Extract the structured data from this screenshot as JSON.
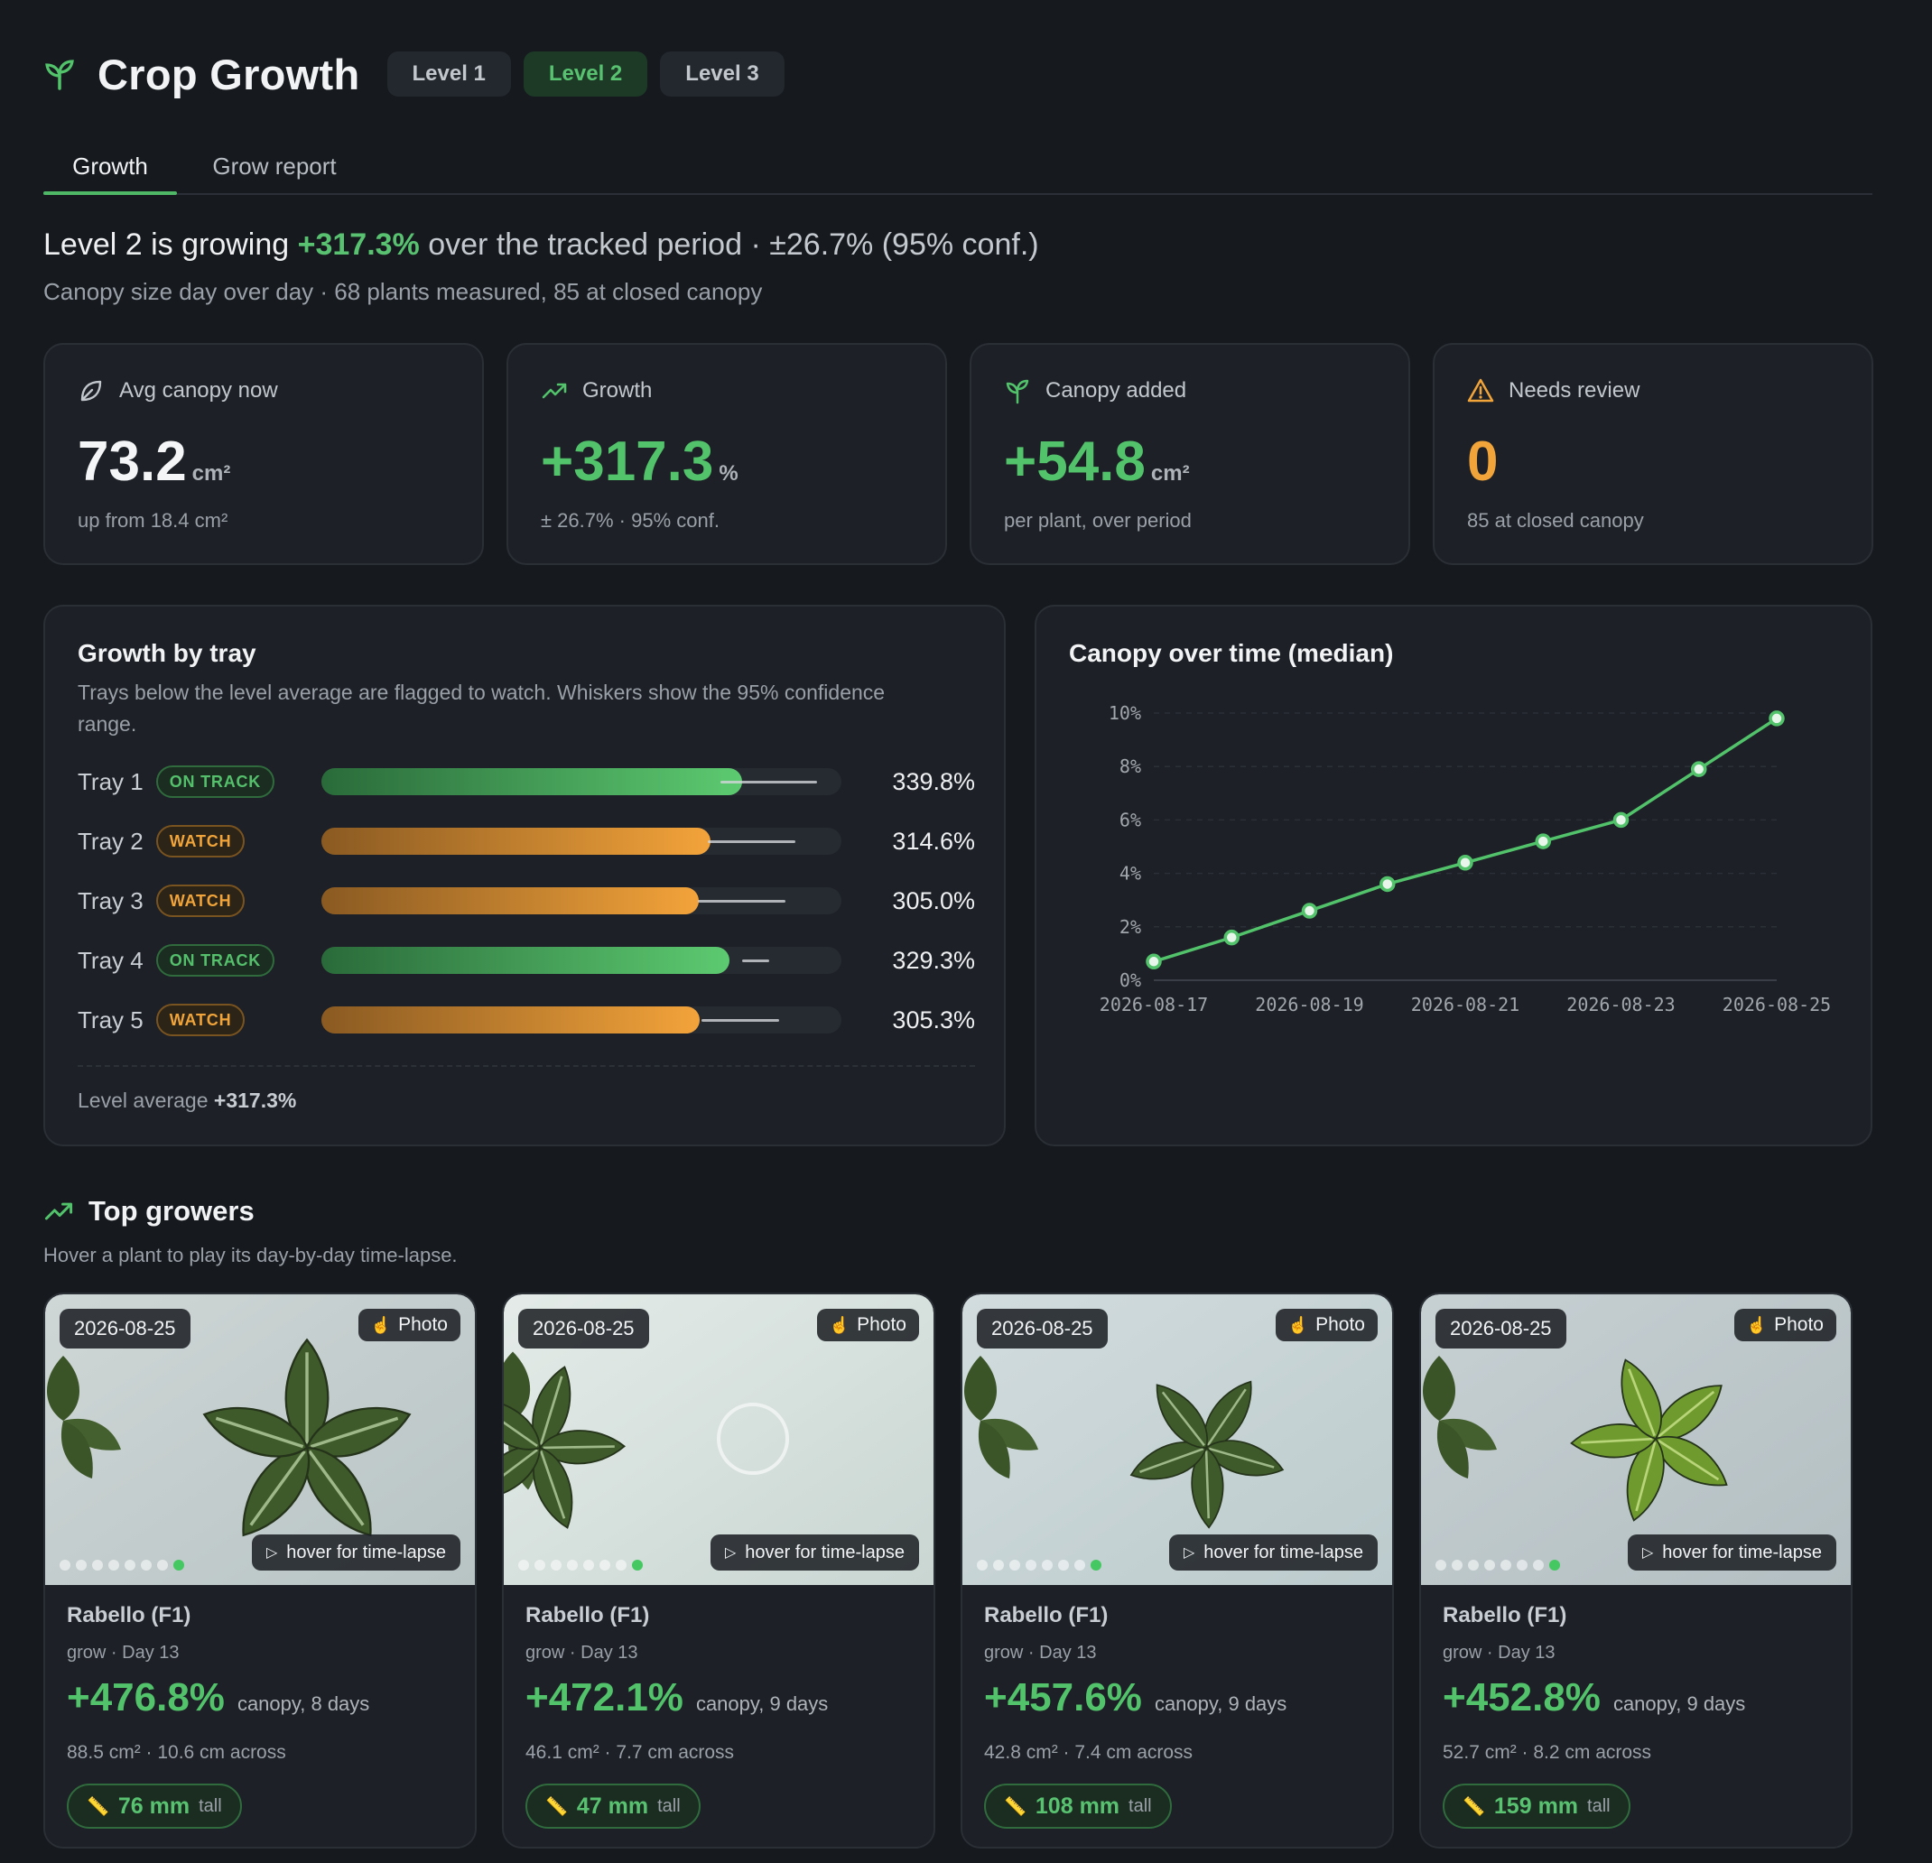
{
  "app": {
    "title": "Crop Growth",
    "levels": [
      "Level 1",
      "Level 2",
      "Level 3"
    ],
    "active_level": "Level 2"
  },
  "tabs": [
    "Growth",
    "Grow report"
  ],
  "active_tab": "Growth",
  "summary": {
    "prefix": "Level 2 is growing",
    "growth": "+317.3%",
    "middle": "over the tracked period",
    "conf": "· ±26.7% (95% conf.)",
    "subtitle": "Canopy size day over day · 68 plants measured, 85 at closed canopy"
  },
  "stats": [
    {
      "icon": "leaf-icon",
      "label": "Avg canopy now",
      "value": "73.2",
      "unit": "cm²",
      "foot": "up from 18.4 cm²",
      "color": "#f3f5f7"
    },
    {
      "icon": "trending-up-icon",
      "label": "Growth",
      "value": "+317.3",
      "unit": "%",
      "foot": "± 26.7% · 95% conf.",
      "color": "#52c26b"
    },
    {
      "icon": "sprout-icon",
      "label": "Canopy added",
      "value": "+54.8",
      "unit": "cm²",
      "foot": "per plant, over period",
      "color": "#52c26b"
    },
    {
      "icon": "warning-icon",
      "label": "Needs review",
      "value": "0",
      "unit": "",
      "foot": "85 at closed canopy",
      "color": "#f0a43a"
    }
  ],
  "trays": {
    "title": "Growth by tray",
    "description": "Trays below the level average are flagged to watch. Whiskers show the 95% confidence range.",
    "scale_max_pct": 420,
    "rows": [
      {
        "name": "Tray 1",
        "status": "ON TRACK",
        "kind": "ontrack",
        "value": 339.8,
        "ci_low": 322,
        "ci_high": 400,
        "label": "339.8%"
      },
      {
        "name": "Tray 2",
        "status": "WATCH",
        "kind": "watch",
        "value": 314.6,
        "ci_low": 312,
        "ci_high": 383,
        "label": "314.6%"
      },
      {
        "name": "Tray 3",
        "status": "WATCH",
        "kind": "watch",
        "value": 305.0,
        "ci_low": 304,
        "ci_high": 375,
        "label": "305.0%"
      },
      {
        "name": "Tray 4",
        "status": "ON TRACK",
        "kind": "ontrack",
        "value": 329.3,
        "ci_low": 340,
        "ci_high": 362,
        "label": "329.3%"
      },
      {
        "name": "Tray 5",
        "status": "WATCH",
        "kind": "watch",
        "value": 305.3,
        "ci_low": 307,
        "ci_high": 370,
        "label": "305.3%"
      }
    ],
    "level_avg_label": "Level average",
    "level_avg_value": "+317.3%",
    "colors": {
      "on_track": "#52c26b",
      "watch": "#f0a43a"
    }
  },
  "chart_data": {
    "type": "line",
    "title": "Canopy over time (median)",
    "xlabel": "",
    "ylabel": "",
    "x": [
      "2026-08-17",
      "2026-08-18",
      "2026-08-19",
      "2026-08-20",
      "2026-08-21",
      "2026-08-22",
      "2026-08-23",
      "2026-08-24",
      "2026-08-25"
    ],
    "series": [
      {
        "values": [
          0.7,
          1.6,
          2.6,
          3.6,
          4.4,
          5.2,
          6.0,
          7.9,
          9.8
        ],
        "color": "#52c26b"
      }
    ],
    "ylim": [
      0,
      10
    ],
    "yticks": [
      "0%",
      "2%",
      "4%",
      "6%",
      "8%",
      "10%"
    ],
    "xticks": [
      "2026-08-17",
      "2026-08-19",
      "2026-08-21",
      "2026-08-23",
      "2026-08-25"
    ],
    "grid": true
  },
  "top_growers": {
    "title": "Top growers",
    "description": "Hover a plant to play its day-by-day time-lapse.",
    "photo_label": "Photo",
    "hover_label": "hover for time-lapse",
    "tall_label": "tall",
    "plants": [
      {
        "date": "2026-08-25",
        "name": "Rabello (F1)",
        "stage": "grow · Day 13",
        "growth": "+476.8%",
        "canopy": "canopy, 8 days",
        "size": "88.5 cm² · 10.6 cm across",
        "height": "76 mm"
      },
      {
        "date": "2026-08-25",
        "name": "Rabello (F1)",
        "stage": "grow · Day 13",
        "growth": "+472.1%",
        "canopy": "canopy, 9 days",
        "size": "46.1 cm² · 7.7 cm across",
        "height": "47 mm"
      },
      {
        "date": "2026-08-25",
        "name": "Rabello (F1)",
        "stage": "grow · Day 13",
        "growth": "+457.6%",
        "canopy": "canopy, 9 days",
        "size": "42.8 cm² · 7.4 cm across",
        "height": "108 mm"
      },
      {
        "date": "2026-08-25",
        "name": "Rabello (F1)",
        "stage": "grow · Day 13",
        "growth": "+452.8%",
        "canopy": "canopy, 9 days",
        "size": "52.7 cm² · 8.2 cm across",
        "height": "159 mm"
      }
    ]
  }
}
